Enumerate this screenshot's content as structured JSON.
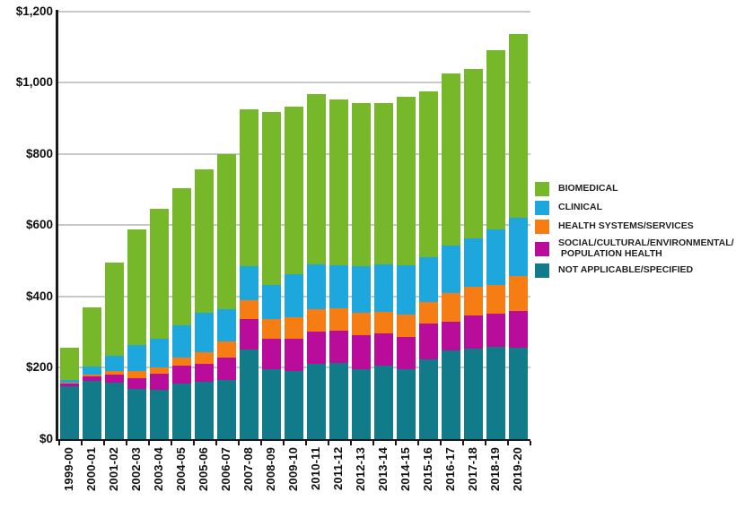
{
  "chart_data": {
    "type": "bar",
    "stacked": true,
    "orientation": "vertical",
    "grid": true,
    "legend_position": "right",
    "ylim": [
      0,
      1200
    ],
    "y_tick_values": [
      0,
      200,
      400,
      600,
      800,
      1000,
      1200
    ],
    "y_tick_labels": [
      "$0",
      "$200",
      "$400",
      "$600",
      "$800",
      "$1,000",
      "$1,200"
    ],
    "categories": [
      "1999-00",
      "2000-01",
      "2001-02",
      "2002-03",
      "2003-04",
      "2004-05",
      "2005-06",
      "2006-07",
      "2007-08",
      "2008-09",
      "2009-10",
      "2010-11",
      "2011-12",
      "2012-13",
      "2013-14",
      "2014-15",
      "2015-16",
      "2016-17",
      "2017-18",
      "2018-19",
      "2019-20"
    ],
    "series": [
      {
        "name": "NOT APPLICABLE/SPECIFIED",
        "color": "#127b8a",
        "values": [
          148,
          163,
          158,
          142,
          139,
          155,
          160,
          166,
          252,
          196,
          190,
          211,
          213,
          197,
          207,
          196,
          224,
          249,
          253,
          260,
          257
        ]
      },
      {
        "name": "SOCIAL/CULTURAL/ENVIRONMENTAL/POPULATION HEALTH",
        "color": "#b90c9b",
        "values": [
          7,
          13,
          22,
          30,
          44,
          50,
          51,
          63,
          86,
          87,
          93,
          92,
          92,
          96,
          90,
          90,
          100,
          81,
          94,
          92,
          103
        ]
      },
      {
        "name": "HEALTH SYSTEMS/SERVICES",
        "color": "#f67d14",
        "values": [
          3,
          6,
          12,
          18,
          19,
          24,
          32,
          44,
          52,
          55,
          59,
          63,
          63,
          61,
          60,
          63,
          61,
          80,
          80,
          81,
          98
        ]
      },
      {
        "name": "CLINICAL",
        "color": "#1ea7dd",
        "values": [
          9,
          22,
          41,
          74,
          81,
          90,
          112,
          92,
          95,
          96,
          121,
          124,
          121,
          131,
          133,
          140,
          126,
          134,
          136,
          155,
          165
        ]
      },
      {
        "name": "BIOMEDICAL",
        "color": "#77b82a",
        "values": [
          88,
          166,
          261,
          324,
          362,
          386,
          403,
          435,
          440,
          483,
          470,
          479,
          463,
          459,
          454,
          472,
          465,
          482,
          475,
          503,
          514
        ]
      }
    ]
  },
  "legend": {
    "items": [
      {
        "label_lines": [
          "BIOMEDICAL"
        ],
        "color": "#77b82a"
      },
      {
        "label_lines": [
          "CLINICAL"
        ],
        "color": "#1ea7dd"
      },
      {
        "label_lines": [
          "HEALTH SYSTEMS/SERVICES"
        ],
        "color": "#f67d14"
      },
      {
        "label_lines": [
          "SOCIAL/CULTURAL/ENVIRONMENTAL/",
          " POPULATION HEALTH"
        ],
        "color": "#b90c9b"
      },
      {
        "label_lines": [
          "NOT APPLICABLE/SPECIFIED"
        ],
        "color": "#127b8a"
      }
    ]
  }
}
